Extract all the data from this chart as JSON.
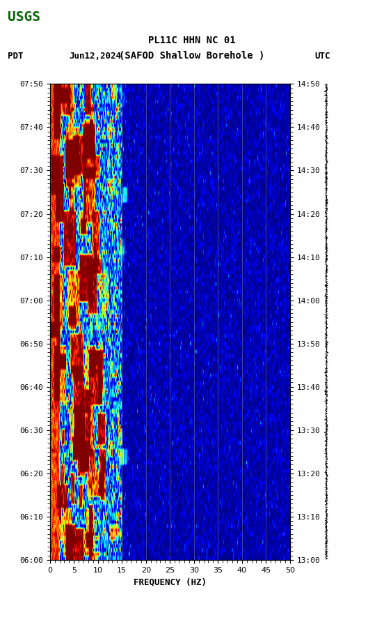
{
  "title_line1": "PL11C HHN NC 01",
  "title_line2": "(SAFOD Shallow Borehole )",
  "date_label": "Jun12,2024",
  "left_tz": "PDT",
  "right_tz": "UTC",
  "left_times": [
    "06:00",
    "06:10",
    "06:20",
    "06:30",
    "06:40",
    "06:50",
    "07:00",
    "07:10",
    "07:20",
    "07:30",
    "07:40",
    "07:50"
  ],
  "right_times": [
    "13:00",
    "13:10",
    "13:20",
    "13:30",
    "13:40",
    "13:50",
    "14:00",
    "14:10",
    "14:20",
    "14:30",
    "14:40",
    "14:50"
  ],
  "freq_min": 0,
  "freq_max": 50,
  "freq_ticks": [
    0,
    5,
    10,
    15,
    20,
    25,
    30,
    35,
    40,
    45,
    50
  ],
  "freq_label": "FREQUENCY (HZ)",
  "time_steps": 120,
  "freq_steps": 400,
  "background_color": "#ffffff",
  "vertical_lines_freq": [
    15,
    20,
    25,
    30,
    35,
    40,
    45
  ],
  "spectrogram_colormap": "jet",
  "usgs_logo_color": "#006400",
  "seismogram_color": "#000000"
}
